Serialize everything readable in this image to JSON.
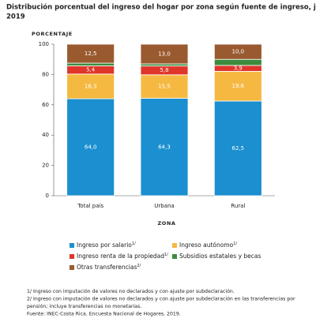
{
  "chart_data": {
    "type": "stacked_bar",
    "title": [
      "Distribución porcentual del ingreso del hogar por zona según fuente de ingreso, julio",
      "2019"
    ],
    "y_label": "PORCENTAJE",
    "x_label": "ZONA",
    "categories": [
      "Total país",
      "Urbana",
      "Rural"
    ],
    "ylim": [
      0,
      100
    ],
    "yticks": [
      0,
      20,
      40,
      60,
      80,
      100
    ],
    "series": [
      {
        "name": "Ingreso por salario",
        "note_ref": "1/",
        "color": "#1b8fcf",
        "values": [
          64.0,
          64.3,
          62.5
        ],
        "value_labels": [
          "64,0",
          "64,3",
          "62,5"
        ]
      },
      {
        "name": "Ingreso autónomo",
        "note_ref": "1/",
        "color": "#f5b942",
        "values": [
          16.3,
          15.5,
          19.6
        ],
        "value_labels": [
          "16,3",
          "15,5",
          "19,6"
        ]
      },
      {
        "name": "Ingreso renta de la propiedad",
        "note_ref": "1/",
        "color": "#e0352b",
        "values": [
          5.4,
          5.8,
          3.9
        ],
        "value_labels": [
          "5,4",
          "5,8",
          "3,9"
        ]
      },
      {
        "name": "Subsidios estatales y becas",
        "color": "#3d8b3d",
        "values": [
          1.8,
          1.4,
          4.0
        ]
      },
      {
        "name": "Otras transferencias",
        "note_ref": "2/",
        "color": "#9a5a2f",
        "values": [
          12.5,
          13.0,
          10.0
        ],
        "value_labels": [
          "12,5",
          "13,0",
          "10,0"
        ]
      }
    ],
    "footnotes": [
      "1/ Ingreso con imputación de valores no declarados y con ajuste por subdeclaración.",
      "2/ Ingreso con imputación de valores no declarados y con ajuste por subdeclaración en las transferencias por",
      "pensión; incluye transferencias no monetarias.",
      "Fuente: INEC-Costa Rica. Encuesta Nacional de Hogares, 2019."
    ]
  }
}
